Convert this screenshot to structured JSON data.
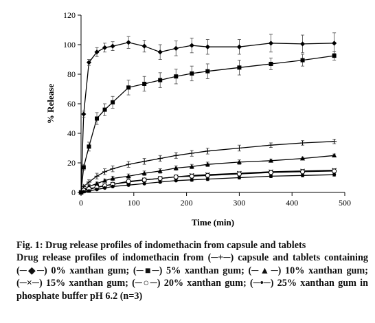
{
  "chart_data": {
    "type": "line",
    "title": "",
    "xlabel": "Time (min)",
    "ylabel": "% Release",
    "xlim": [
      0,
      500
    ],
    "ylim": [
      0,
      120
    ],
    "xticks": [
      "0",
      "100",
      "200",
      "300",
      "400",
      "500"
    ],
    "yticks": [
      "0",
      "20",
      "40",
      "60",
      "80",
      "100",
      "120"
    ],
    "grid": false,
    "legend": "none",
    "series": [
      {
        "marker": "diamond",
        "x": [
          0,
          5,
          15,
          30,
          45,
          60,
          90,
          120,
          150,
          180,
          210,
          240,
          300,
          360,
          420,
          480
        ],
        "y": [
          0,
          53,
          88,
          95,
          98,
          99,
          101.5,
          99,
          95,
          97.5,
          99.5,
          98.5,
          98.5,
          101,
          100.5,
          101
        ],
        "err": [
          0,
          2,
          2,
          3,
          3,
          3,
          4,
          4,
          5,
          5,
          5,
          5,
          5,
          6,
          6,
          7
        ]
      },
      {
        "marker": "square",
        "x": [
          0,
          5,
          15,
          30,
          45,
          60,
          90,
          120,
          150,
          180,
          210,
          240,
          300,
          360,
          420,
          480
        ],
        "y": [
          0,
          17,
          31,
          50,
          56,
          61,
          71,
          73.5,
          76,
          78.5,
          80.5,
          82,
          84.5,
          87,
          89.5,
          92.5
        ],
        "err": [
          0,
          2,
          3,
          4,
          4,
          4,
          5,
          5,
          5,
          5,
          5,
          5,
          5,
          4,
          4,
          3
        ]
      },
      {
        "marker": "plus",
        "x": [
          0,
          5,
          15,
          30,
          45,
          60,
          90,
          120,
          150,
          180,
          210,
          240,
          300,
          360,
          420,
          480
        ],
        "y": [
          0,
          4,
          7,
          11,
          14,
          16,
          19,
          21,
          23,
          25,
          26.5,
          28,
          30,
          32,
          33.5,
          34.5
        ],
        "err": [
          0,
          1,
          1.5,
          2,
          2,
          2,
          2,
          2,
          2,
          2,
          2,
          2,
          2,
          1.5,
          1.5,
          1.5
        ]
      },
      {
        "marker": "triangle",
        "x": [
          0,
          5,
          15,
          30,
          45,
          60,
          90,
          120,
          150,
          180,
          210,
          240,
          300,
          360,
          420,
          480
        ],
        "y": [
          0,
          2,
          4,
          6,
          8,
          9.5,
          11,
          13,
          14.5,
          16.5,
          17.5,
          19,
          20.5,
          21.5,
          23,
          25
        ],
        "err": [
          0,
          1,
          1,
          1,
          1,
          1.5,
          1.5,
          1.5,
          1.5,
          1.5,
          1.5,
          1.5,
          1.5,
          1,
          1,
          1
        ]
      },
      {
        "marker": "cross",
        "x": [
          0,
          5,
          15,
          30,
          45,
          60,
          90,
          120,
          150,
          180,
          210,
          240,
          300,
          360,
          420,
          480
        ],
        "y": [
          0,
          1,
          2,
          3.5,
          4.5,
          5.5,
          7,
          8.5,
          9.5,
          10.5,
          11.5,
          12,
          13,
          14,
          14.5,
          15
        ],
        "err": [
          0,
          0.5,
          0.5,
          0.5,
          0.5,
          0.5,
          1,
          1,
          1,
          1,
          1,
          1,
          1,
          1,
          1,
          1
        ]
      },
      {
        "marker": "circle",
        "x": [
          0,
          5,
          15,
          30,
          45,
          60,
          90,
          120,
          150,
          180,
          210,
          240,
          300,
          360,
          420,
          480
        ],
        "y": [
          0,
          1.5,
          2.5,
          3.5,
          4.5,
          5.5,
          7.5,
          8.5,
          9.5,
          10.5,
          11,
          11.5,
          12.5,
          13.5,
          14,
          14.5
        ],
        "err": [
          0,
          0.5,
          0.5,
          0.5,
          0.5,
          0.5,
          1,
          1,
          1,
          1,
          1,
          1,
          1,
          1,
          1,
          1
        ]
      },
      {
        "marker": "dot",
        "x": [
          0,
          5,
          15,
          30,
          45,
          60,
          90,
          120,
          150,
          180,
          210,
          240,
          300,
          360,
          420,
          480
        ],
        "y": [
          0,
          0.5,
          1,
          2,
          3,
          4,
          5,
          6,
          7,
          8,
          8.5,
          9,
          10,
          11,
          11.5,
          12
        ],
        "err": [
          0,
          0.5,
          0.5,
          0.5,
          0.5,
          0.5,
          0.5,
          0.5,
          0.5,
          0.5,
          1,
          1,
          1,
          1,
          1,
          1
        ]
      }
    ]
  },
  "caption": {
    "title": "Fig. 1: Drug release profiles of indomethacin from capsule and tablets",
    "seg0": "Drug release profiles of indomethacin from (",
    "seg1": ") capsule and tablets containing (",
    "seg2": ") 0% xanthan gum; (",
    "seg3": ") 5% xanthan gum; (",
    "seg4": ") 10% xanthan gum; (",
    "seg5": ") 15% xanthan gum;  (",
    "seg6": ") 20% xanthan gum; (",
    "seg7": ") 25% xanthan gum in phosphate buffer pH 6.2 (n=3)",
    "sym_capsule": "─+─",
    "sym_0": "─◆─",
    "sym_5": "─■─",
    "sym_10": "─▲─",
    "sym_15": "─×─",
    "sym_20": "─○─",
    "sym_25": "─•─"
  }
}
